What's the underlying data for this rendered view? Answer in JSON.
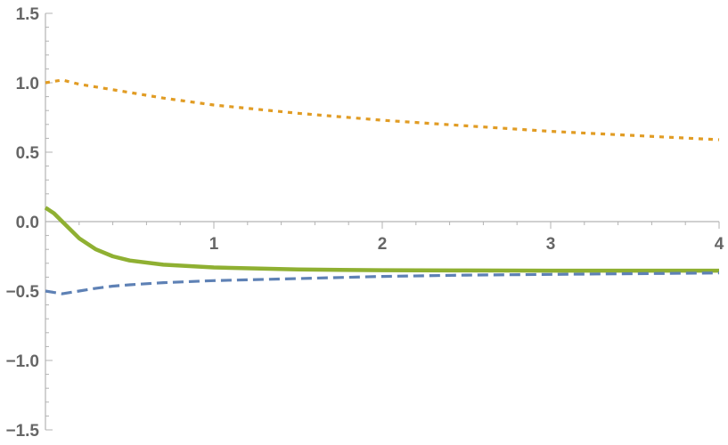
{
  "chart_data": {
    "type": "line",
    "title": "",
    "xlabel": "",
    "ylabel": "",
    "xlim": [
      0,
      4
    ],
    "ylim": [
      -1.5,
      1.5
    ],
    "grid": false,
    "legend": "none",
    "x_ticks": [
      {
        "value": 1,
        "label": "1"
      },
      {
        "value": 2,
        "label": "2"
      },
      {
        "value": 3,
        "label": "3"
      },
      {
        "value": 4,
        "label": "4"
      }
    ],
    "y_ticks": [
      {
        "value": 1.5,
        "label": "1.5"
      },
      {
        "value": 1.0,
        "label": "1.0"
      },
      {
        "value": 0.5,
        "label": "0.5"
      },
      {
        "value": 0.0,
        "label": "0.0"
      },
      {
        "value": -0.5,
        "label": "−0.5"
      },
      {
        "value": -1.0,
        "label": "−1.0"
      },
      {
        "value": -1.5,
        "label": "−1.5"
      }
    ],
    "x": [
      0,
      0.05,
      0.1,
      0.2,
      0.3,
      0.4,
      0.5,
      0.7,
      1.0,
      1.5,
      2.0,
      2.5,
      3.0,
      3.5,
      4.0
    ],
    "series": [
      {
        "color": "#e19c24",
        "style": "dotted",
        "values": [
          1.0,
          1.01,
          1.02,
          0.99,
          0.97,
          0.95,
          0.93,
          0.89,
          0.84,
          0.78,
          0.73,
          0.69,
          0.65,
          0.62,
          0.59
        ]
      },
      {
        "color": "#8fb032",
        "style": "solid",
        "values": [
          0.1,
          0.06,
          0.0,
          -0.12,
          -0.2,
          -0.25,
          -0.28,
          -0.31,
          -0.33,
          -0.345,
          -0.35,
          -0.352,
          -0.353,
          -0.353,
          -0.353
        ]
      },
      {
        "color": "#5e81b5",
        "style": "dashed",
        "values": [
          -0.5,
          -0.51,
          -0.52,
          -0.5,
          -0.48,
          -0.465,
          -0.455,
          -0.44,
          -0.425,
          -0.41,
          -0.395,
          -0.385,
          -0.38,
          -0.375,
          -0.37
        ]
      }
    ]
  }
}
